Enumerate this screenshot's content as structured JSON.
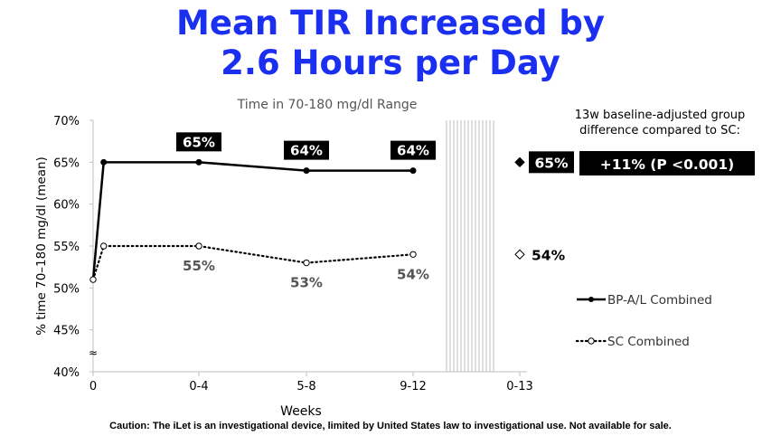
{
  "slide": {
    "title_line1": "Mean TIR Increased by",
    "title_line2": "2.6 Hours per Day",
    "caption": "Caution: The iLet is an investigational device, limited by United States law to investigational use. Not available for sale."
  },
  "chart_data": {
    "type": "line",
    "title": "Time in 70-180 mg/dl Range",
    "xlabel": "Weeks",
    "ylabel": "% time 70–180 mg/dl (mean)",
    "categories": [
      "0",
      "0-4",
      "5-8",
      "9-12",
      "0-13"
    ],
    "y_ticks": [
      "70%",
      "65%",
      "60%",
      "55%",
      "50%",
      "45%",
      "40%"
    ],
    "ylim": [
      40,
      70
    ],
    "grid": false,
    "axis_break": "≈",
    "legend_position": "right",
    "series": [
      {
        "name": "BP-A/L Combined",
        "style": "solid",
        "marker": "filled-circle",
        "color": "#000000",
        "x": [
          0,
          0.1,
          1,
          2,
          3
        ],
        "values": [
          51,
          65,
          65,
          64,
          64
        ],
        "labels": [
          "",
          "",
          "65%",
          "64%",
          "64%"
        ],
        "final_marker": "filled-diamond",
        "final_value": 65,
        "final_label": "65%"
      },
      {
        "name": "SC Combined",
        "style": "dotted",
        "marker": "open-circle",
        "color": "#000000",
        "x": [
          0,
          0.1,
          1,
          2,
          3
        ],
        "values": [
          51,
          55,
          55,
          53,
          54
        ],
        "labels": [
          "",
          "",
          "55%",
          "53%",
          "54%"
        ],
        "final_marker": "open-diamond",
        "final_value": 54,
        "final_label": "54%"
      }
    ],
    "annotation": {
      "heading_line1": "13w baseline-adjusted group",
      "heading_line2": "difference compared to SC:",
      "difference": "+11% (P <0.001)"
    }
  }
}
